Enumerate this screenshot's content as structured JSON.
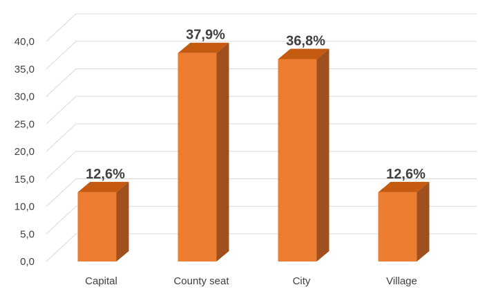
{
  "chart_data": {
    "type": "bar",
    "categories": [
      "Capital",
      "County seat",
      "City",
      "Village"
    ],
    "values": [
      12.6,
      37.9,
      36.8,
      12.6
    ],
    "data_labels": [
      "12,6%",
      "37,9%",
      "36,8%",
      "12,6%"
    ],
    "y_ticks": [
      "0,0",
      "5,0",
      "10,0",
      "15,0",
      "20,0",
      "25,0",
      "30,0",
      "35,0",
      "40,0"
    ],
    "ylim": [
      0,
      40
    ],
    "grid": true,
    "legend": "none",
    "style": "3d-column",
    "colors": {
      "bar_front": "#ed7d31",
      "bar_side": "#a0501e",
      "bar_top": "#c55a11",
      "grid": "#d9d9d9",
      "text": "#404040"
    }
  }
}
